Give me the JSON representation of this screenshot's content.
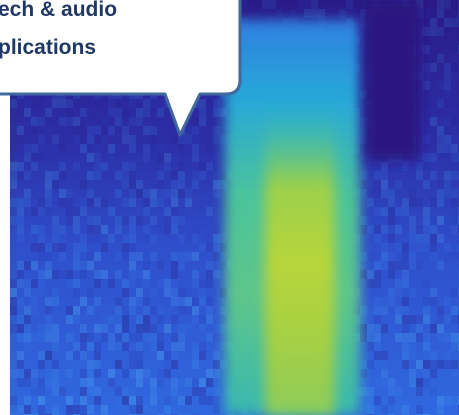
{
  "callout": {
    "lines": [
      "ech & audio",
      "plications"
    ]
  }
}
